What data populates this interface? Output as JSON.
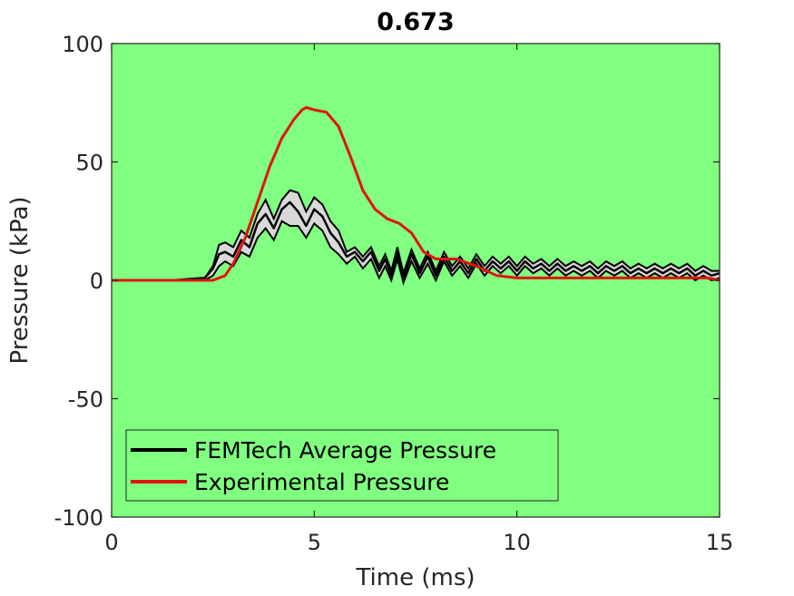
{
  "chart_data": {
    "type": "line",
    "title": "0.673",
    "xlabel": "Time (ms)",
    "ylabel": "Pressure (kPa)",
    "xlim": [
      0,
      15
    ],
    "ylim": [
      -100,
      100
    ],
    "xticks": [
      0,
      5,
      10,
      15
    ],
    "yticks": [
      -100,
      -50,
      0,
      50,
      100
    ],
    "xtick_labels": [
      "0",
      "5",
      "10",
      "15"
    ],
    "ytick_labels": [
      "-100",
      "-50",
      "0",
      "50",
      "100"
    ],
    "grid": false,
    "legend_position": "bottom-left",
    "colors": {
      "plot_background": "#80ff80",
      "femtech": "#000000",
      "experimental": "#e0140f",
      "band_fill": "#d9d9d9"
    },
    "series": [
      {
        "name": "FEMTech Average Pressure",
        "color": "#000000",
        "x": [
          0,
          1.5,
          2.3,
          2.5,
          2.65,
          2.8,
          3.0,
          3.2,
          3.4,
          3.6,
          3.8,
          4.0,
          4.2,
          4.4,
          4.6,
          4.8,
          5.0,
          5.2,
          5.4,
          5.6,
          5.8,
          6.0,
          6.2,
          6.4,
          6.6,
          6.75,
          6.9,
          7.05,
          7.2,
          7.4,
          7.6,
          7.8,
          8.0,
          8.2,
          8.4,
          8.6,
          8.8,
          9.0,
          9.2,
          9.4,
          9.6,
          9.8,
          10.0,
          10.2,
          10.4,
          10.6,
          10.8,
          11.0,
          11.2,
          11.4,
          11.6,
          11.8,
          12.0,
          12.2,
          12.4,
          12.6,
          12.8,
          13.0,
          13.2,
          13.4,
          13.6,
          13.8,
          14.0,
          14.2,
          14.4,
          14.6,
          14.8,
          15.0
        ],
        "values": [
          0,
          0,
          1,
          5,
          11,
          12,
          10,
          17,
          14,
          24,
          28,
          22,
          30,
          33,
          29,
          23,
          30,
          27,
          20,
          16,
          10,
          12,
          8,
          12,
          4,
          9,
          2,
          12,
          1,
          11,
          3,
          10,
          2,
          10,
          4,
          8,
          3,
          9,
          4,
          8,
          5,
          8,
          4,
          8,
          5,
          7,
          4,
          7,
          4,
          6,
          4,
          6,
          3,
          6,
          4,
          6,
          3,
          5,
          3,
          5,
          3,
          5,
          3,
          5,
          2,
          4,
          2,
          3
        ],
        "band_upper": [
          0,
          0,
          1,
          6,
          15,
          16,
          14,
          21,
          18,
          28,
          34,
          26,
          34,
          38,
          37,
          29,
          35,
          32,
          25,
          21,
          12,
          14,
          10,
          14,
          6,
          11,
          4,
          14,
          3,
          13,
          5,
          12,
          4,
          12,
          6,
          10,
          5,
          11,
          6,
          10,
          7,
          10,
          6,
          10,
          7,
          9,
          6,
          9,
          6,
          8,
          6,
          8,
          5,
          8,
          6,
          8,
          5,
          7,
          5,
          7,
          5,
          7,
          5,
          7,
          4,
          6,
          4,
          4
        ],
        "band_lower": [
          0,
          0,
          0,
          2,
          6,
          8,
          6,
          12,
          10,
          18,
          22,
          17,
          25,
          23,
          23,
          18,
          24,
          21,
          14,
          11,
          7,
          10,
          5,
          9,
          1,
          6,
          0,
          9,
          -1,
          8,
          1,
          7,
          0,
          8,
          2,
          6,
          1,
          7,
          2,
          6,
          3,
          6,
          2,
          6,
          3,
          5,
          2,
          5,
          2,
          4,
          2,
          4,
          1,
          4,
          2,
          4,
          1,
          3,
          1,
          3,
          1,
          3,
          1,
          3,
          0,
          2,
          0,
          1
        ]
      },
      {
        "name": "Experimental Pressure",
        "color": "#e0140f",
        "x": [
          0,
          1.5,
          2.5,
          2.8,
          3.0,
          3.3,
          3.6,
          3.9,
          4.2,
          4.5,
          4.7,
          4.8,
          5.0,
          5.3,
          5.6,
          5.9,
          6.2,
          6.5,
          6.8,
          7.1,
          7.4,
          7.7,
          8.0,
          8.5,
          9.0,
          9.5,
          10.0,
          11.0,
          12.0,
          13.0,
          14.0,
          14.7,
          15.0
        ],
        "values": [
          0,
          0,
          0,
          2,
          7,
          18,
          33,
          48,
          60,
          68,
          72,
          73,
          72,
          71,
          65,
          52,
          38,
          30,
          26,
          24,
          20,
          12,
          9,
          9,
          6,
          2,
          1,
          1,
          1,
          1,
          1,
          1,
          0
        ]
      }
    ]
  }
}
